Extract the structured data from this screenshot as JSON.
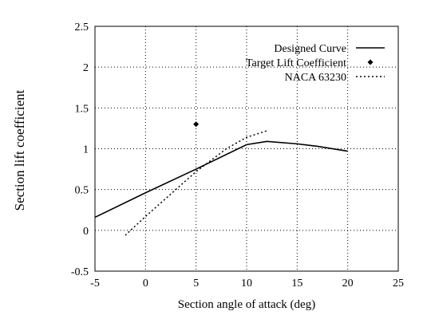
{
  "chart_data": {
    "type": "line",
    "xlabel": "Section angle of attack (deg)",
    "ylabel": "Section lift coefficient",
    "xlim": [
      -5,
      25
    ],
    "ylim": [
      -0.5,
      2.5
    ],
    "xticks": [
      "-5",
      "0",
      "5",
      "10",
      "15",
      "20",
      "25"
    ],
    "yticks": [
      "-0.5",
      "0",
      "0.5",
      "1",
      "1.5",
      "2",
      "2.5"
    ],
    "grid": true,
    "grid_style": "dotted",
    "legend_position": "top-right",
    "series": [
      {
        "name": "Designed Curve",
        "style": "solid",
        "x": [
          -5,
          0,
          5,
          10,
          12,
          15,
          17,
          20
        ],
        "y": [
          0.16,
          0.46,
          0.75,
          1.05,
          1.09,
          1.06,
          1.03,
          0.97
        ]
      },
      {
        "name": "Target Lift Coefficient",
        "style": "marker",
        "x": [
          5
        ],
        "y": [
          1.3
        ]
      },
      {
        "name": "NACA 63230",
        "style": "dotted",
        "x": [
          -2,
          0,
          5,
          8,
          10,
          12
        ],
        "y": [
          -0.06,
          0.17,
          0.72,
          1.0,
          1.14,
          1.22
        ]
      }
    ]
  }
}
